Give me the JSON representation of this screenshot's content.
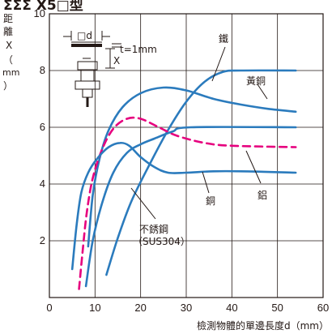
{
  "chart_data": {
    "type": "line",
    "title_fragment": "ΣΣΣ X5□型",
    "xlabel": "檢測物體的單邊長度d（mm）",
    "ylabel_chars": [
      "距",
      "離",
      "X",
      "（",
      "mm",
      "）"
    ],
    "xlim": [
      0,
      60
    ],
    "ylim": [
      0,
      10
    ],
    "x_ticks": [
      0,
      10,
      20,
      30,
      40,
      50,
      60
    ],
    "y_ticks": [
      2,
      4,
      6,
      8,
      10
    ],
    "grid": true,
    "series": [
      {
        "name": "鐵",
        "color": "#2b7bbd",
        "dash": false,
        "points": [
          [
            12.5,
            0.8
          ],
          [
            15,
            2.1
          ],
          [
            18,
            3.4
          ],
          [
            22,
            4.7
          ],
          [
            26,
            5.9
          ],
          [
            30,
            6.9
          ],
          [
            34,
            7.6
          ],
          [
            38,
            7.95
          ],
          [
            42,
            8.0
          ],
          [
            54,
            8.0
          ]
        ]
      },
      {
        "name": "黃銅",
        "color": "#2b7bbd",
        "dash": false,
        "points": [
          [
            8.5,
            1.8
          ],
          [
            9.5,
            3.6
          ],
          [
            11,
            4.9
          ],
          [
            13,
            5.9
          ],
          [
            16,
            6.7
          ],
          [
            20,
            7.2
          ],
          [
            25,
            7.4
          ],
          [
            30,
            7.3
          ],
          [
            36,
            7.0
          ],
          [
            42,
            6.8
          ],
          [
            48,
            6.65
          ],
          [
            54,
            6.55
          ]
        ]
      },
      {
        "name": "鋁",
        "color": "#e6007e",
        "dash": true,
        "points": [
          [
            6.5,
            0.3
          ],
          [
            7.2,
            1.5
          ],
          [
            8.2,
            3.0
          ],
          [
            9.5,
            4.2
          ],
          [
            11.5,
            5.2
          ],
          [
            14,
            5.95
          ],
          [
            17,
            6.3
          ],
          [
            20,
            6.3
          ],
          [
            24,
            6.0
          ],
          [
            28,
            5.7
          ],
          [
            34,
            5.45
          ],
          [
            40,
            5.35
          ],
          [
            54,
            5.3
          ]
        ]
      },
      {
        "name": "銅",
        "color": "#2b7bbd",
        "dash": false,
        "points": [
          [
            5,
            1.0
          ],
          [
            6,
            2.6
          ],
          [
            7,
            3.7
          ],
          [
            8.5,
            4.4
          ],
          [
            10.5,
            4.9
          ],
          [
            13,
            5.3
          ],
          [
            15.5,
            5.45
          ],
          [
            17.5,
            5.35
          ],
          [
            20,
            4.95
          ],
          [
            23,
            4.6
          ],
          [
            26,
            4.4
          ],
          [
            30,
            4.4
          ],
          [
            36,
            4.45
          ],
          [
            42,
            4.45
          ],
          [
            54,
            4.4
          ]
        ]
      },
      {
        "name": "不銹鋼（SUS304）",
        "color": "#2b7bbd",
        "dash": false,
        "points": [
          [
            8,
            0.4
          ],
          [
            9.5,
            2.0
          ],
          [
            11.5,
            3.3
          ],
          [
            14,
            4.4
          ],
          [
            17,
            5.1
          ],
          [
            20,
            5.4
          ],
          [
            23,
            5.6
          ],
          [
            27,
            5.85
          ],
          [
            31,
            6.0
          ],
          [
            54,
            6.0
          ]
        ]
      }
    ],
    "annotations": [
      "鐵",
      "黃銅",
      "鋁",
      "銅",
      "不銹鋼",
      "（SUS304）"
    ],
    "inset": {
      "labels": [
        "□d",
        "t=1mm",
        "X"
      ]
    }
  }
}
